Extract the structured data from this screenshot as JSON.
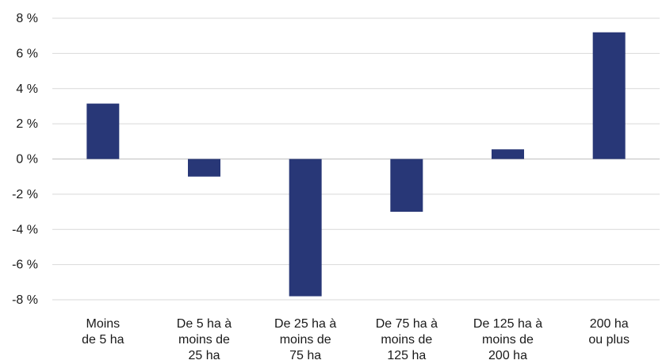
{
  "chart_data": {
    "type": "bar",
    "title": "",
    "xlabel": "",
    "ylabel": "",
    "ylim": [
      -8,
      8
    ],
    "ytick_step": 2,
    "ytick_suffix": " %",
    "grid": true,
    "bar_color": "#283777",
    "categories": [
      [
        "Moins",
        "de 5 ha"
      ],
      [
        "De 5 ha à",
        "moins de",
        "25 ha"
      ],
      [
        "De 25 ha à",
        "moins de",
        "75 ha"
      ],
      [
        "De 75 ha à",
        "moins de",
        "125 ha"
      ],
      [
        "De 125 ha à",
        "moins de",
        "200 ha"
      ],
      [
        "200 ha",
        "ou plus"
      ]
    ],
    "values": [
      3.15,
      -1.0,
      -7.8,
      -3.0,
      0.55,
      7.2
    ]
  }
}
